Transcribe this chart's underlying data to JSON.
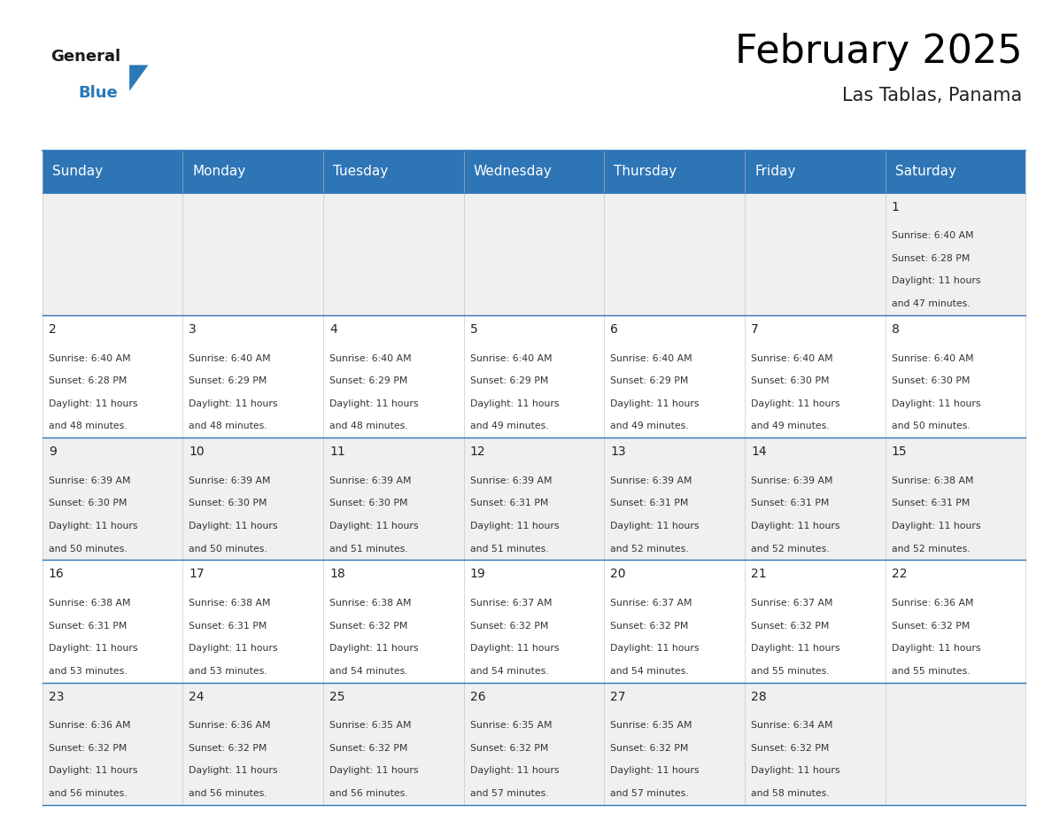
{
  "title": "February 2025",
  "subtitle": "Las Tablas, Panama",
  "header_color": "#2E75B6",
  "header_text_color": "#FFFFFF",
  "cell_bg_white": "#FFFFFF",
  "cell_bg_gray": "#F0F0F0",
  "border_color": "#2E75B6",
  "grid_line_color": "#BBBBBB",
  "day_headers": [
    "Sunday",
    "Monday",
    "Tuesday",
    "Wednesday",
    "Thursday",
    "Friday",
    "Saturday"
  ],
  "days_data": [
    {
      "day": 1,
      "col": 6,
      "row": 0,
      "sunrise": "6:40 AM",
      "sunset": "6:28 PM",
      "daylight_hours": 11,
      "daylight_minutes": 47
    },
    {
      "day": 2,
      "col": 0,
      "row": 1,
      "sunrise": "6:40 AM",
      "sunset": "6:28 PM",
      "daylight_hours": 11,
      "daylight_minutes": 48
    },
    {
      "day": 3,
      "col": 1,
      "row": 1,
      "sunrise": "6:40 AM",
      "sunset": "6:29 PM",
      "daylight_hours": 11,
      "daylight_minutes": 48
    },
    {
      "day": 4,
      "col": 2,
      "row": 1,
      "sunrise": "6:40 AM",
      "sunset": "6:29 PM",
      "daylight_hours": 11,
      "daylight_minutes": 48
    },
    {
      "day": 5,
      "col": 3,
      "row": 1,
      "sunrise": "6:40 AM",
      "sunset": "6:29 PM",
      "daylight_hours": 11,
      "daylight_minutes": 49
    },
    {
      "day": 6,
      "col": 4,
      "row": 1,
      "sunrise": "6:40 AM",
      "sunset": "6:29 PM",
      "daylight_hours": 11,
      "daylight_minutes": 49
    },
    {
      "day": 7,
      "col": 5,
      "row": 1,
      "sunrise": "6:40 AM",
      "sunset": "6:30 PM",
      "daylight_hours": 11,
      "daylight_minutes": 49
    },
    {
      "day": 8,
      "col": 6,
      "row": 1,
      "sunrise": "6:40 AM",
      "sunset": "6:30 PM",
      "daylight_hours": 11,
      "daylight_minutes": 50
    },
    {
      "day": 9,
      "col": 0,
      "row": 2,
      "sunrise": "6:39 AM",
      "sunset": "6:30 PM",
      "daylight_hours": 11,
      "daylight_minutes": 50
    },
    {
      "day": 10,
      "col": 1,
      "row": 2,
      "sunrise": "6:39 AM",
      "sunset": "6:30 PM",
      "daylight_hours": 11,
      "daylight_minutes": 50
    },
    {
      "day": 11,
      "col": 2,
      "row": 2,
      "sunrise": "6:39 AM",
      "sunset": "6:30 PM",
      "daylight_hours": 11,
      "daylight_minutes": 51
    },
    {
      "day": 12,
      "col": 3,
      "row": 2,
      "sunrise": "6:39 AM",
      "sunset": "6:31 PM",
      "daylight_hours": 11,
      "daylight_minutes": 51
    },
    {
      "day": 13,
      "col": 4,
      "row": 2,
      "sunrise": "6:39 AM",
      "sunset": "6:31 PM",
      "daylight_hours": 11,
      "daylight_minutes": 52
    },
    {
      "day": 14,
      "col": 5,
      "row": 2,
      "sunrise": "6:39 AM",
      "sunset": "6:31 PM",
      "daylight_hours": 11,
      "daylight_minutes": 52
    },
    {
      "day": 15,
      "col": 6,
      "row": 2,
      "sunrise": "6:38 AM",
      "sunset": "6:31 PM",
      "daylight_hours": 11,
      "daylight_minutes": 52
    },
    {
      "day": 16,
      "col": 0,
      "row": 3,
      "sunrise": "6:38 AM",
      "sunset": "6:31 PM",
      "daylight_hours": 11,
      "daylight_minutes": 53
    },
    {
      "day": 17,
      "col": 1,
      "row": 3,
      "sunrise": "6:38 AM",
      "sunset": "6:31 PM",
      "daylight_hours": 11,
      "daylight_minutes": 53
    },
    {
      "day": 18,
      "col": 2,
      "row": 3,
      "sunrise": "6:38 AM",
      "sunset": "6:32 PM",
      "daylight_hours": 11,
      "daylight_minutes": 54
    },
    {
      "day": 19,
      "col": 3,
      "row": 3,
      "sunrise": "6:37 AM",
      "sunset": "6:32 PM",
      "daylight_hours": 11,
      "daylight_minutes": 54
    },
    {
      "day": 20,
      "col": 4,
      "row": 3,
      "sunrise": "6:37 AM",
      "sunset": "6:32 PM",
      "daylight_hours": 11,
      "daylight_minutes": 54
    },
    {
      "day": 21,
      "col": 5,
      "row": 3,
      "sunrise": "6:37 AM",
      "sunset": "6:32 PM",
      "daylight_hours": 11,
      "daylight_minutes": 55
    },
    {
      "day": 22,
      "col": 6,
      "row": 3,
      "sunrise": "6:36 AM",
      "sunset": "6:32 PM",
      "daylight_hours": 11,
      "daylight_minutes": 55
    },
    {
      "day": 23,
      "col": 0,
      "row": 4,
      "sunrise": "6:36 AM",
      "sunset": "6:32 PM",
      "daylight_hours": 11,
      "daylight_minutes": 56
    },
    {
      "day": 24,
      "col": 1,
      "row": 4,
      "sunrise": "6:36 AM",
      "sunset": "6:32 PM",
      "daylight_hours": 11,
      "daylight_minutes": 56
    },
    {
      "day": 25,
      "col": 2,
      "row": 4,
      "sunrise": "6:35 AM",
      "sunset": "6:32 PM",
      "daylight_hours": 11,
      "daylight_minutes": 56
    },
    {
      "day": 26,
      "col": 3,
      "row": 4,
      "sunrise": "6:35 AM",
      "sunset": "6:32 PM",
      "daylight_hours": 11,
      "daylight_minutes": 57
    },
    {
      "day": 27,
      "col": 4,
      "row": 4,
      "sunrise": "6:35 AM",
      "sunset": "6:32 PM",
      "daylight_hours": 11,
      "daylight_minutes": 57
    },
    {
      "day": 28,
      "col": 5,
      "row": 4,
      "sunrise": "6:34 AM",
      "sunset": "6:32 PM",
      "daylight_hours": 11,
      "daylight_minutes": 58
    }
  ],
  "num_rows": 5,
  "num_cols": 7,
  "fig_width": 11.88,
  "fig_height": 9.18,
  "title_fontsize": 32,
  "subtitle_fontsize": 15,
  "header_fontsize": 11,
  "day_number_fontsize": 10,
  "cell_text_fontsize": 7.8,
  "logo_color_general": "#1a1a1a",
  "logo_color_blue": "#2979B8",
  "logo_triangle_color": "#2979B8"
}
